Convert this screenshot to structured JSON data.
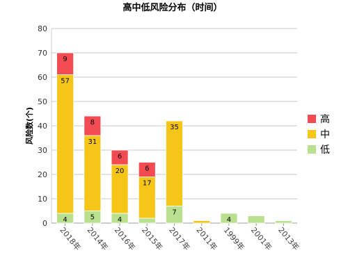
{
  "chart_data": {
    "type": "bar",
    "stacked": true,
    "title": "高中低风险分布（时间）",
    "xlabel": "",
    "ylabel": "风险数(个)",
    "ylim": [
      0,
      80
    ],
    "yticks": [
      "0",
      "10",
      "20",
      "30",
      "40",
      "50",
      "60",
      "70",
      "80"
    ],
    "categories": [
      "2018年",
      "2014年",
      "2016年",
      "2015年",
      "2017年",
      "2011年",
      "1999年",
      "2001年",
      "2013年"
    ],
    "series": [
      {
        "name": "低",
        "color": "#b8e08e",
        "values": [
          4,
          5,
          4,
          2,
          7,
          0,
          4,
          3,
          1
        ],
        "labels": [
          "4",
          "5",
          "4",
          "",
          "7",
          "",
          "4",
          "",
          ""
        ]
      },
      {
        "name": "中",
        "color": "#f5c518",
        "values": [
          57,
          31,
          20,
          17,
          35,
          1,
          0,
          0,
          0
        ],
        "labels": [
          "57",
          "31",
          "20",
          "17",
          "35",
          "",
          "",
          "",
          ""
        ]
      },
      {
        "name": "高",
        "color": "#f24b52",
        "values": [
          9,
          8,
          6,
          6,
          0,
          0,
          0,
          0,
          0
        ],
        "labels": [
          "9",
          "8",
          "6",
          "6",
          "",
          "",
          "",
          "",
          ""
        ]
      }
    ],
    "grid": true,
    "legend_position": "right",
    "legend_order": [
      "高",
      "中",
      "低"
    ]
  }
}
